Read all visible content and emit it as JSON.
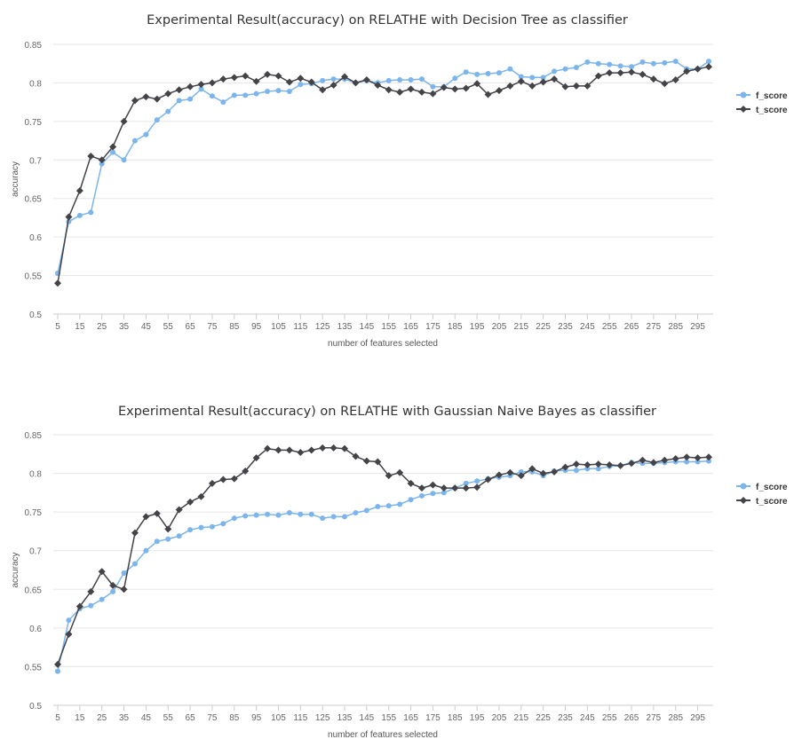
{
  "colors": {
    "f_score": "#7cb5ec",
    "t_score": "#434348"
  },
  "chart_data": [
    {
      "type": "line",
      "title": "Experimental Result(accuracy) on RELATHE with Decision Tree as classifier",
      "xlabel": "number of features selected",
      "ylabel": "accuracy",
      "ylim": [
        0.5,
        0.85
      ],
      "yticks": [
        "0.5",
        "0.55",
        "0.6",
        "0.65",
        "0.7",
        "0.75",
        "0.8",
        "0.85"
      ],
      "xtick_labels": [
        "5",
        "15",
        "25",
        "35",
        "45",
        "55",
        "65",
        "75",
        "85",
        "95",
        "105",
        "115",
        "125",
        "135",
        "145",
        "155",
        "165",
        "175",
        "185",
        "195",
        "205",
        "215",
        "225",
        "235",
        "245",
        "255",
        "265",
        "275",
        "285",
        "295"
      ],
      "x": [
        5,
        10,
        15,
        20,
        25,
        30,
        35,
        40,
        45,
        50,
        55,
        60,
        65,
        70,
        75,
        80,
        85,
        90,
        95,
        100,
        105,
        110,
        115,
        120,
        125,
        130,
        135,
        140,
        145,
        150,
        155,
        160,
        165,
        170,
        175,
        180,
        185,
        190,
        195,
        200,
        205,
        210,
        215,
        220,
        225,
        230,
        235,
        240,
        245,
        250,
        255,
        260,
        265,
        270,
        275,
        280,
        285,
        290,
        295,
        300
      ],
      "grid": true,
      "legend_position": "right",
      "series": [
        {
          "name": "f_score",
          "values": [
            0.553,
            0.62,
            0.628,
            0.632,
            0.695,
            0.71,
            0.7,
            0.725,
            0.733,
            0.752,
            0.763,
            0.777,
            0.779,
            0.792,
            0.783,
            0.775,
            0.784,
            0.784,
            0.786,
            0.789,
            0.79,
            0.789,
            0.798,
            0.799,
            0.803,
            0.805,
            0.805,
            0.8,
            0.803,
            0.8,
            0.803,
            0.804,
            0.804,
            0.805,
            0.795,
            0.795,
            0.806,
            0.814,
            0.811,
            0.812,
            0.813,
            0.818,
            0.808,
            0.807,
            0.807,
            0.815,
            0.818,
            0.82,
            0.827,
            0.825,
            0.824,
            0.822,
            0.821,
            0.827,
            0.825,
            0.826,
            0.828,
            0.818,
            0.818,
            0.828
          ]
        },
        {
          "name": "t_score",
          "values": [
            0.54,
            0.626,
            0.66,
            0.705,
            0.7,
            0.717,
            0.75,
            0.777,
            0.782,
            0.779,
            0.786,
            0.791,
            0.795,
            0.798,
            0.8,
            0.805,
            0.807,
            0.809,
            0.802,
            0.811,
            0.809,
            0.801,
            0.806,
            0.801,
            0.791,
            0.797,
            0.808,
            0.8,
            0.804,
            0.797,
            0.791,
            0.788,
            0.792,
            0.788,
            0.786,
            0.794,
            0.792,
            0.793,
            0.799,
            0.785,
            0.79,
            0.796,
            0.802,
            0.796,
            0.801,
            0.805,
            0.795,
            0.796,
            0.796,
            0.809,
            0.813,
            0.813,
            0.814,
            0.811,
            0.805,
            0.799,
            0.804,
            0.815,
            0.818,
            0.821
          ]
        }
      ]
    },
    {
      "type": "line",
      "title": "Experimental Result(accuracy) on RELATHE with Gaussian Naive Bayes as classifier",
      "xlabel": "number of features selected",
      "ylabel": "accuracy",
      "ylim": [
        0.5,
        0.85
      ],
      "yticks": [
        "0.5",
        "0.55",
        "0.6",
        "0.65",
        "0.7",
        "0.75",
        "0.8",
        "0.85"
      ],
      "xtick_labels": [
        "5",
        "15",
        "25",
        "35",
        "45",
        "55",
        "65",
        "75",
        "85",
        "95",
        "105",
        "115",
        "125",
        "135",
        "145",
        "155",
        "165",
        "175",
        "185",
        "195",
        "205",
        "215",
        "225",
        "235",
        "245",
        "255",
        "265",
        "275",
        "285",
        "295"
      ],
      "x": [
        5,
        10,
        15,
        20,
        25,
        30,
        35,
        40,
        45,
        50,
        55,
        60,
        65,
        70,
        75,
        80,
        85,
        90,
        95,
        100,
        105,
        110,
        115,
        120,
        125,
        130,
        135,
        140,
        145,
        150,
        155,
        160,
        165,
        170,
        175,
        180,
        185,
        190,
        195,
        200,
        205,
        210,
        215,
        220,
        225,
        230,
        235,
        240,
        245,
        250,
        255,
        260,
        265,
        270,
        275,
        280,
        285,
        290,
        295,
        300
      ],
      "grid": true,
      "legend_position": "right",
      "series": [
        {
          "name": "f_score",
          "values": [
            0.544,
            0.61,
            0.625,
            0.629,
            0.637,
            0.647,
            0.671,
            0.683,
            0.7,
            0.712,
            0.715,
            0.719,
            0.727,
            0.73,
            0.731,
            0.735,
            0.742,
            0.745,
            0.746,
            0.747,
            0.746,
            0.749,
            0.747,
            0.747,
            0.742,
            0.744,
            0.744,
            0.749,
            0.752,
            0.757,
            0.758,
            0.76,
            0.766,
            0.771,
            0.774,
            0.775,
            0.781,
            0.787,
            0.79,
            0.793,
            0.795,
            0.797,
            0.802,
            0.802,
            0.797,
            0.803,
            0.804,
            0.804,
            0.806,
            0.806,
            0.809,
            0.81,
            0.814,
            0.813,
            0.813,
            0.814,
            0.815,
            0.815,
            0.815,
            0.816
          ]
        },
        {
          "name": "t_score",
          "values": [
            0.553,
            0.592,
            0.628,
            0.647,
            0.673,
            0.655,
            0.65,
            0.723,
            0.744,
            0.748,
            0.728,
            0.753,
            0.763,
            0.77,
            0.787,
            0.792,
            0.793,
            0.803,
            0.82,
            0.832,
            0.83,
            0.83,
            0.827,
            0.83,
            0.833,
            0.833,
            0.832,
            0.822,
            0.816,
            0.815,
            0.797,
            0.801,
            0.787,
            0.781,
            0.785,
            0.781,
            0.781,
            0.781,
            0.782,
            0.792,
            0.798,
            0.801,
            0.797,
            0.806,
            0.8,
            0.802,
            0.808,
            0.812,
            0.811,
            0.812,
            0.811,
            0.81,
            0.813,
            0.817,
            0.814,
            0.817,
            0.819,
            0.821,
            0.82,
            0.821
          ]
        }
      ]
    }
  ]
}
